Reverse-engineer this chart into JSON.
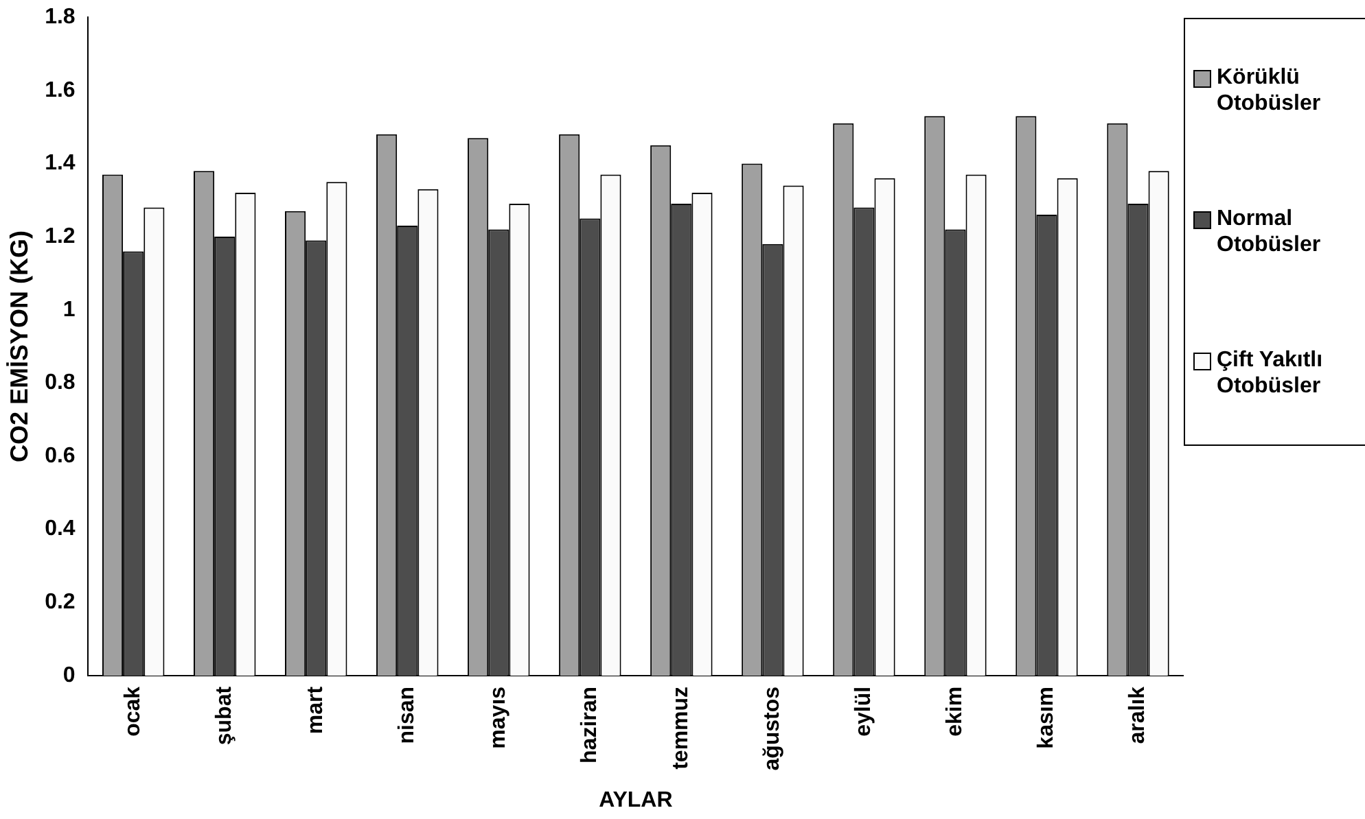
{
  "chart_data": {
    "type": "bar",
    "xlabel": "AYLAR",
    "ylabel": "CO2 EMİSYON (KG)",
    "categories": [
      "ocak",
      "şubat",
      "mart",
      "nisan",
      "mayıs",
      "haziran",
      "temmuz",
      "ağustos",
      "eylül",
      "ekim",
      "kasım",
      "aralık"
    ],
    "series": [
      {
        "name": "Körüklü Otobüsler",
        "color": "#a0a0a0",
        "values": [
          1.37,
          1.38,
          1.27,
          1.48,
          1.47,
          1.48,
          1.45,
          1.4,
          1.51,
          1.53,
          1.53,
          1.51
        ]
      },
      {
        "name": "Normal Otobüsler",
        "color": "#4d4d4d",
        "values": [
          1.16,
          1.2,
          1.19,
          1.23,
          1.22,
          1.25,
          1.29,
          1.18,
          1.28,
          1.22,
          1.26,
          1.29
        ]
      },
      {
        "name": "Çift Yakıtlı Otobüsler",
        "color": "#fafafa",
        "values": [
          1.28,
          1.32,
          1.35,
          1.33,
          1.29,
          1.37,
          1.32,
          1.34,
          1.36,
          1.37,
          1.36,
          1.38
        ]
      }
    ],
    "ylim": [
      0,
      1.8
    ],
    "yticks": [
      0,
      0.2,
      0.4,
      0.6,
      0.8,
      1,
      1.2,
      1.4,
      1.6,
      1.8
    ],
    "grid": false,
    "legend": "right"
  }
}
